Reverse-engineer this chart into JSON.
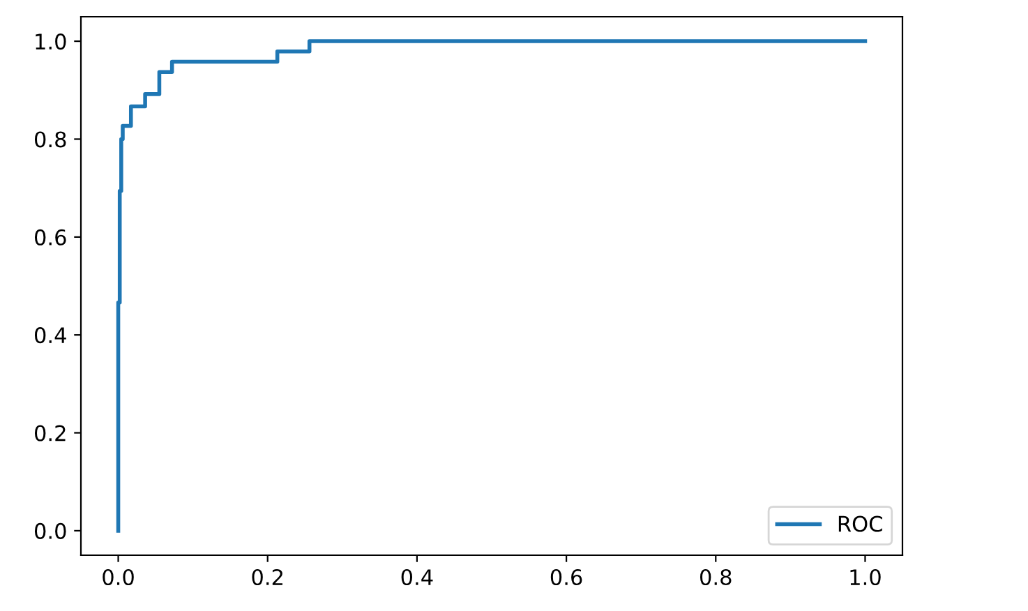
{
  "chart_data": {
    "type": "line",
    "xlim": [
      -0.05,
      1.05
    ],
    "ylim": [
      -0.05,
      1.05
    ],
    "xticks": [
      {
        "value": 0,
        "label": "0.0"
      },
      {
        "value": 0.2,
        "label": "0.2"
      },
      {
        "value": 0.4,
        "label": "0.4"
      },
      {
        "value": 0.6,
        "label": "0.6"
      },
      {
        "value": 0.8,
        "label": "0.8"
      },
      {
        "value": 1,
        "label": "1.0"
      }
    ],
    "yticks": [
      {
        "value": 0,
        "label": "0.0"
      },
      {
        "value": 0.2,
        "label": "0.2"
      },
      {
        "value": 0.4,
        "label": "0.4"
      },
      {
        "value": 0.6,
        "label": "0.6"
      },
      {
        "value": 0.8,
        "label": "0.8"
      },
      {
        "value": 1,
        "label": "1.0"
      }
    ],
    "grid": false,
    "legend": "bottom right",
    "marker": "none",
    "line_style": "solid",
    "series": [
      {
        "name": "ROC",
        "color": "#1f77b4",
        "x": [
          0,
          0,
          0.002,
          0.002,
          0.004,
          0.004,
          0.006,
          0.006,
          0.017,
          0.017,
          0.036,
          0.036,
          0.055,
          0.055,
          0.072,
          0.072,
          0.213,
          0.213,
          0.256,
          0.256,
          1
        ],
        "values": [
          0,
          0.466,
          0.466,
          0.694,
          0.694,
          0.8,
          0.8,
          0.827,
          0.827,
          0.867,
          0.867,
          0.892,
          0.892,
          0.937,
          0.937,
          0.958,
          0.958,
          0.979,
          0.979,
          1,
          1
        ]
      }
    ]
  }
}
